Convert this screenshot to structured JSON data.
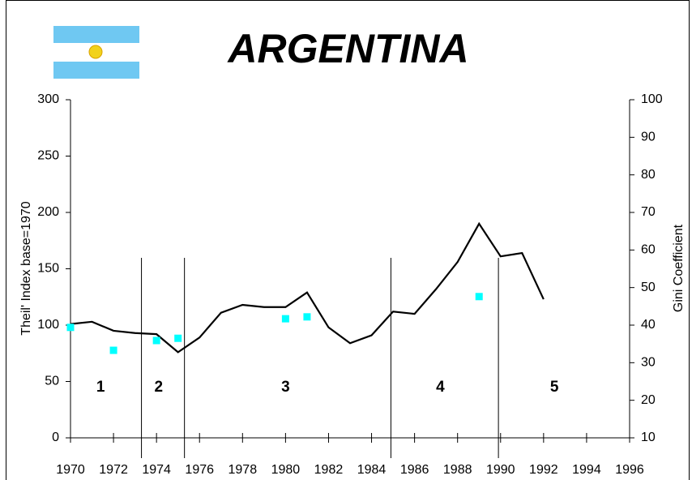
{
  "chart_data": {
    "type": "line",
    "title": "ARGENTINA",
    "ylabel": "Theil' Index base=1970",
    "y2label": "Gini Coefficient",
    "xlim": [
      1970,
      1996
    ],
    "xticks": [
      1970,
      1972,
      1974,
      1976,
      1978,
      1980,
      1982,
      1984,
      1986,
      1988,
      1990,
      1992,
      1994,
      1996
    ],
    "ylim": [
      0,
      300
    ],
    "yticks": [
      0,
      50,
      100,
      150,
      200,
      250,
      300
    ],
    "y2lim": [
      10,
      100
    ],
    "y2ticks": [
      10,
      20,
      30,
      40,
      50,
      60,
      70,
      80,
      90,
      100
    ],
    "series": [
      {
        "color": "#000000",
        "x": [
          1970,
          1971,
          1972,
          1973,
          1974,
          1975,
          1976,
          1977,
          1978,
          1979,
          1980,
          1981,
          1982,
          1983,
          1984,
          1985,
          1986,
          1987,
          1988,
          1989,
          1990,
          1991,
          1992
        ],
        "values": [
          101,
          103,
          95,
          93,
          92,
          76,
          89,
          111,
          118,
          116,
          116,
          129,
          98,
          84,
          91,
          112,
          110,
          132,
          156,
          190,
          161,
          164,
          123
        ]
      },
      {
        "color": "#00ffff",
        "axis": "y2",
        "marker": "square",
        "x": [
          1970,
          1972,
          1974,
          1975,
          1980,
          1981,
          1989
        ],
        "values": [
          39.4,
          33.3,
          35.9,
          36.5,
          41.7,
          42.2,
          47.6
        ]
      }
    ],
    "period_boundaries": [
      1973.3,
      1975.3,
      1984.9,
      1989.9
    ],
    "periods": [
      {
        "label": "1",
        "x": 1971.4
      },
      {
        "label": "2",
        "x": 1974.1
      },
      {
        "label": "3",
        "x": 1980
      },
      {
        "label": "4",
        "x": 1987.2
      },
      {
        "label": "5",
        "x": 1992.5
      }
    ]
  }
}
